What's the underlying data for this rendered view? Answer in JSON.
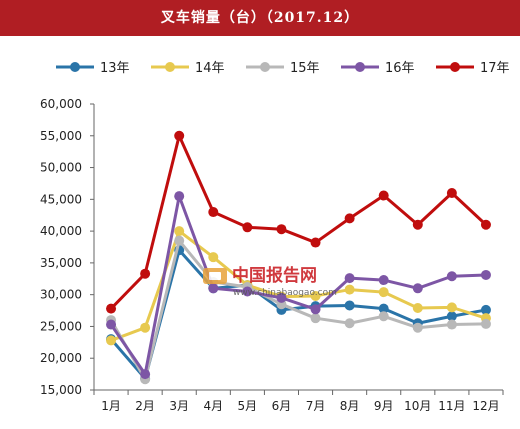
{
  "chart_data": {
    "type": "line",
    "title": "叉车销量（台）（2017.12）",
    "categories": [
      "1月",
      "2月",
      "3月",
      "4月",
      "5月",
      "6月",
      "7月",
      "8月",
      "9月",
      "10月",
      "11月",
      "12月"
    ],
    "ylim": [
      15000,
      60000
    ],
    "yticks": [
      "15,000",
      "20,000",
      "25,000",
      "30,000",
      "35,000",
      "40,000",
      "45,000",
      "50,000",
      "55,000",
      "60,000"
    ],
    "grid": false,
    "legend_position": "top",
    "series": [
      {
        "name": "13年",
        "color": "#2a74a8",
        "values": [
          23000,
          16800,
          37000,
          31000,
          31500,
          27600,
          28200,
          28300,
          27800,
          25500,
          26600,
          27600
        ]
      },
      {
        "name": "14年",
        "color": "#e7c94f",
        "values": [
          22800,
          24800,
          40000,
          35900,
          31500,
          29700,
          29800,
          30800,
          30400,
          27900,
          28000,
          26300
        ]
      },
      {
        "name": "15年",
        "color": "#b8b8b8",
        "values": [
          26000,
          16700,
          38500,
          32000,
          31200,
          28500,
          26300,
          25500,
          26600,
          24800,
          25300,
          25400
        ]
      },
      {
        "name": "16年",
        "color": "#7d56a5",
        "values": [
          25300,
          17500,
          45500,
          31000,
          30500,
          29500,
          27700,
          32600,
          32300,
          31000,
          32900,
          33100
        ]
      },
      {
        "name": "17年",
        "color": "#c00d0d",
        "values": [
          27800,
          33300,
          55000,
          43000,
          40600,
          40300,
          38200,
          42000,
          45600,
          41000,
          46000,
          41000
        ]
      }
    ]
  },
  "watermark": {
    "name": "中国报告网",
    "url": "www.chinabaogao.com"
  }
}
